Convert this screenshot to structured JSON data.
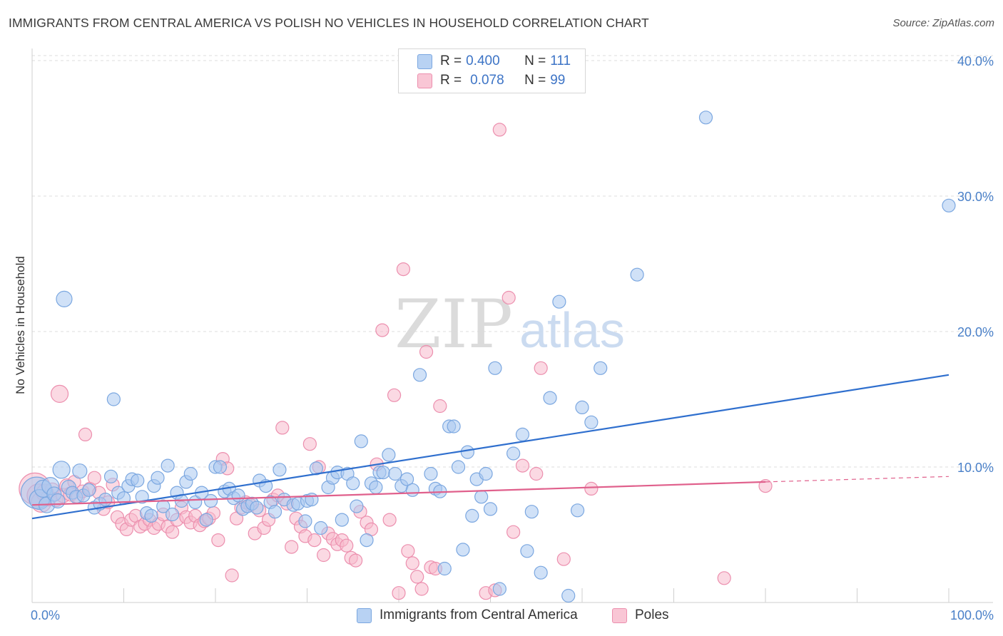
{
  "title": "IMMIGRANTS FROM CENTRAL AMERICA VS POLISH NO VEHICLES IN HOUSEHOLD CORRELATION CHART",
  "source": "Source: ZipAtlas.com",
  "watermark": {
    "zip": "ZIP",
    "atlas": "atlas"
  },
  "colors": {
    "blue_fill": "#a9c8f0",
    "blue_stroke": "#7ba7e0",
    "blue_line": "#2f6fce",
    "pink_fill": "#f7b9cc",
    "pink_stroke": "#ec8fae",
    "pink_line": "#e0608c",
    "grid": "#dcdcdc",
    "tick_text": "#4a80c8"
  },
  "legend": {
    "rows": [
      {
        "r_label": "R = ",
        "r_value": "0.400",
        "n_label": "N = ",
        "n_value": "111"
      },
      {
        "r_label": "R = ",
        "r_value": "0.078",
        "n_label": "N = ",
        "n_value": "99"
      }
    ]
  },
  "bottom_legend": [
    "Immigrants from Central America",
    "Poles"
  ],
  "chart_data": {
    "type": "scatter",
    "title": "IMMIGRANTS FROM CENTRAL AMERICA VS POLISH NO VEHICLES IN HOUSEHOLD CORRELATION CHART",
    "xlabel": "",
    "ylabel": "No Vehicles in Household",
    "xlim": [
      0,
      100
    ],
    "ylim": [
      0,
      40
    ],
    "x_tick_labels": [
      "0.0%",
      "100.0%"
    ],
    "y_ticks": [
      10,
      20,
      30,
      40
    ],
    "y_tick_labels": [
      "10.0%",
      "20.0%",
      "30.0%",
      "40.0%"
    ],
    "legend_placement": "top-center",
    "grid": true,
    "series": [
      {
        "name": "Immigrants from Central America",
        "R": 0.4,
        "N": 111,
        "trend": {
          "x": [
            0,
            100
          ],
          "y": [
            6.2,
            16.8
          ],
          "dashed_from": null
        },
        "points": [
          [
            0.5,
            8.1,
            22
          ],
          [
            0.8,
            7.6,
            14
          ],
          [
            1.2,
            8.4,
            12
          ],
          [
            1.6,
            7.2,
            11
          ],
          [
            2.0,
            8.6,
            12
          ],
          [
            2.4,
            8.0,
            10
          ],
          [
            2.8,
            7.5,
            10
          ],
          [
            3.2,
            9.8,
            12
          ],
          [
            3.5,
            22.4,
            11
          ],
          [
            4.0,
            8.5,
            10
          ],
          [
            4.4,
            8.1,
            9
          ],
          [
            4.8,
            7.8,
            9
          ],
          [
            5.2,
            9.7,
            10
          ],
          [
            5.6,
            7.9,
            9
          ],
          [
            6.2,
            8.3,
            9
          ],
          [
            6.8,
            7.0,
            9
          ],
          [
            7.4,
            7.3,
            9
          ],
          [
            8.0,
            7.6,
            9
          ],
          [
            8.6,
            9.3,
            9
          ],
          [
            8.9,
            15.0,
            9
          ],
          [
            9.4,
            8.1,
            9
          ],
          [
            10.0,
            7.7,
            9
          ],
          [
            10.5,
            8.6,
            9
          ],
          [
            10.9,
            9.1,
            9
          ],
          [
            11.5,
            9.0,
            9
          ],
          [
            12.0,
            7.8,
            9
          ],
          [
            12.5,
            6.6,
            9
          ],
          [
            13.0,
            6.4,
            9
          ],
          [
            13.3,
            8.6,
            9
          ],
          [
            13.7,
            9.2,
            9
          ],
          [
            14.3,
            7.1,
            9
          ],
          [
            14.8,
            10.1,
            9
          ],
          [
            15.3,
            6.5,
            9
          ],
          [
            15.8,
            8.1,
            9
          ],
          [
            16.3,
            7.5,
            9
          ],
          [
            16.8,
            8.9,
            9
          ],
          [
            17.3,
            9.5,
            9
          ],
          [
            17.8,
            7.4,
            9
          ],
          [
            18.5,
            8.1,
            9
          ],
          [
            19.0,
            6.1,
            9
          ],
          [
            19.5,
            7.5,
            9
          ],
          [
            20.0,
            10.0,
            9
          ],
          [
            20.5,
            10.0,
            9
          ],
          [
            21.0,
            8.2,
            9
          ],
          [
            21.5,
            8.4,
            9
          ],
          [
            22.0,
            7.7,
            9
          ],
          [
            22.5,
            7.9,
            9
          ],
          [
            23.0,
            6.9,
            9
          ],
          [
            23.5,
            7.1,
            9
          ],
          [
            24.0,
            7.3,
            9
          ],
          [
            24.5,
            7.0,
            9
          ],
          [
            24.8,
            9.0,
            9
          ],
          [
            25.5,
            8.6,
            9
          ],
          [
            26.0,
            7.4,
            9
          ],
          [
            26.5,
            6.7,
            9
          ],
          [
            27.0,
            9.8,
            9
          ],
          [
            27.5,
            7.6,
            9
          ],
          [
            28.5,
            7.2,
            9
          ],
          [
            29.0,
            7.3,
            9
          ],
          [
            29.8,
            6.0,
            9
          ],
          [
            30.0,
            7.5,
            9
          ],
          [
            30.5,
            7.6,
            9
          ],
          [
            31.0,
            9.9,
            9
          ],
          [
            31.5,
            5.5,
            9
          ],
          [
            32.3,
            8.5,
            9
          ],
          [
            32.8,
            9.2,
            9
          ],
          [
            33.3,
            9.6,
            9
          ],
          [
            33.8,
            6.1,
            9
          ],
          [
            34.4,
            9.5,
            9
          ],
          [
            35.0,
            8.8,
            9
          ],
          [
            35.4,
            7.1,
            9
          ],
          [
            35.9,
            11.9,
            9
          ],
          [
            36.5,
            4.6,
            9
          ],
          [
            37.0,
            8.8,
            9
          ],
          [
            37.5,
            8.5,
            9
          ],
          [
            37.9,
            9.6,
            9
          ],
          [
            38.3,
            9.6,
            9
          ],
          [
            38.9,
            10.9,
            9
          ],
          [
            39.6,
            9.5,
            9
          ],
          [
            40.3,
            8.6,
            9
          ],
          [
            40.9,
            9.1,
            9
          ],
          [
            41.5,
            8.3,
            9
          ],
          [
            42.3,
            16.8,
            9
          ],
          [
            43.5,
            9.5,
            9
          ],
          [
            44.0,
            8.4,
            9
          ],
          [
            44.5,
            8.2,
            9
          ],
          [
            45.0,
            2.5,
            9
          ],
          [
            45.5,
            13.0,
            9
          ],
          [
            46.0,
            13.0,
            9
          ],
          [
            46.5,
            10.0,
            9
          ],
          [
            47.0,
            3.9,
            9
          ],
          [
            47.5,
            11.1,
            9
          ],
          [
            48.0,
            6.4,
            9
          ],
          [
            48.5,
            9.1,
            9
          ],
          [
            49.0,
            7.8,
            9
          ],
          [
            49.5,
            9.5,
            9
          ],
          [
            50.0,
            6.9,
            9
          ],
          [
            50.5,
            17.3,
            9
          ],
          [
            51.0,
            1.0,
            9
          ],
          [
            52.5,
            11.0,
            9
          ],
          [
            53.5,
            12.4,
            9
          ],
          [
            54.0,
            3.8,
            9
          ],
          [
            54.5,
            6.7,
            9
          ],
          [
            55.5,
            2.2,
            9
          ],
          [
            56.5,
            15.1,
            9
          ],
          [
            57.5,
            22.2,
            9
          ],
          [
            58.5,
            0.5,
            9
          ],
          [
            59.5,
            6.8,
            9
          ],
          [
            60.0,
            14.4,
            9
          ],
          [
            61.0,
            13.3,
            9
          ],
          [
            62.0,
            17.3,
            9
          ],
          [
            66.0,
            24.2,
            9
          ],
          [
            73.5,
            35.8,
            9
          ],
          [
            100.0,
            29.3,
            9
          ]
        ]
      },
      {
        "name": "Poles",
        "R": 0.078,
        "N": 99,
        "trend": {
          "x": [
            0,
            80,
            100
          ],
          "y": [
            7.2,
            8.9,
            9.3
          ],
          "dashed_from": 80
        },
        "points": [
          [
            0.3,
            8.4,
            22
          ],
          [
            0.7,
            7.9,
            16
          ],
          [
            1.0,
            7.4,
            14
          ],
          [
            1.4,
            8.1,
            12
          ],
          [
            1.8,
            7.7,
            11
          ],
          [
            2.2,
            8.3,
            10
          ],
          [
            2.6,
            7.6,
            10
          ],
          [
            3.0,
            15.4,
            12
          ],
          [
            3.4,
            7.9,
            10
          ],
          [
            3.8,
            8.6,
            10
          ],
          [
            4.2,
            8.0,
            10
          ],
          [
            4.6,
            8.9,
            9
          ],
          [
            5.0,
            7.8,
            9
          ],
          [
            5.5,
            8.2,
            9
          ],
          [
            5.8,
            12.4,
            9
          ],
          [
            6.3,
            8.4,
            9
          ],
          [
            6.8,
            9.2,
            9
          ],
          [
            7.3,
            8.1,
            9
          ],
          [
            7.8,
            6.9,
            9
          ],
          [
            8.3,
            7.4,
            9
          ],
          [
            8.8,
            8.7,
            9
          ],
          [
            9.3,
            6.3,
            9
          ],
          [
            9.8,
            5.8,
            9
          ],
          [
            10.3,
            5.4,
            9
          ],
          [
            10.8,
            6.1,
            9
          ],
          [
            11.3,
            6.4,
            9
          ],
          [
            11.8,
            5.6,
            9
          ],
          [
            12.3,
            5.8,
            9
          ],
          [
            12.8,
            6.1,
            9
          ],
          [
            13.3,
            5.5,
            9
          ],
          [
            13.8,
            5.8,
            9
          ],
          [
            14.3,
            6.5,
            9
          ],
          [
            14.8,
            5.6,
            9
          ],
          [
            15.3,
            5.2,
            9
          ],
          [
            15.8,
            6.1,
            9
          ],
          [
            16.3,
            7.0,
            9
          ],
          [
            16.8,
            6.3,
            9
          ],
          [
            17.3,
            5.9,
            9
          ],
          [
            17.8,
            6.4,
            9
          ],
          [
            18.3,
            5.7,
            9
          ],
          [
            18.8,
            6.0,
            9
          ],
          [
            19.3,
            6.2,
            9
          ],
          [
            19.8,
            6.6,
            9
          ],
          [
            20.3,
            4.6,
            9
          ],
          [
            20.8,
            10.6,
            9
          ],
          [
            21.3,
            9.9,
            9
          ],
          [
            21.8,
            2.0,
            9
          ],
          [
            22.3,
            6.2,
            9
          ],
          [
            22.8,
            7.0,
            9
          ],
          [
            23.3,
            7.4,
            9
          ],
          [
            23.8,
            7.2,
            9
          ],
          [
            24.3,
            5.1,
            9
          ],
          [
            24.8,
            6.8,
            9
          ],
          [
            25.3,
            5.5,
            9
          ],
          [
            25.8,
            6.1,
            9
          ],
          [
            26.3,
            7.6,
            9
          ],
          [
            26.8,
            7.9,
            9
          ],
          [
            27.3,
            12.9,
            9
          ],
          [
            27.8,
            7.3,
            9
          ],
          [
            28.3,
            4.1,
            9
          ],
          [
            28.8,
            6.2,
            9
          ],
          [
            29.3,
            5.6,
            9
          ],
          [
            29.8,
            4.9,
            9
          ],
          [
            30.3,
            11.7,
            9
          ],
          [
            30.8,
            4.6,
            9
          ],
          [
            31.3,
            10.0,
            9
          ],
          [
            31.8,
            3.5,
            9
          ],
          [
            32.3,
            5.1,
            9
          ],
          [
            32.8,
            4.7,
            9
          ],
          [
            33.3,
            4.3,
            9
          ],
          [
            33.8,
            4.6,
            9
          ],
          [
            34.3,
            4.2,
            9
          ],
          [
            34.8,
            3.3,
            9
          ],
          [
            35.3,
            3.1,
            9
          ],
          [
            35.8,
            6.7,
            9
          ],
          [
            36.5,
            5.9,
            9
          ],
          [
            37.0,
            5.4,
            9
          ],
          [
            37.6,
            10.2,
            9
          ],
          [
            38.2,
            20.1,
            9
          ],
          [
            39.0,
            6.1,
            9
          ],
          [
            39.5,
            15.3,
            9
          ],
          [
            40.0,
            0.7,
            9
          ],
          [
            40.5,
            24.6,
            9
          ],
          [
            41.0,
            3.8,
            9
          ],
          [
            41.5,
            2.9,
            9
          ],
          [
            42.0,
            1.9,
            9
          ],
          [
            42.5,
            1.0,
            9
          ],
          [
            43.0,
            18.5,
            9
          ],
          [
            43.5,
            2.6,
            9
          ],
          [
            44.0,
            2.5,
            9
          ],
          [
            44.5,
            14.5,
            9
          ],
          [
            49.5,
            0.7,
            9
          ],
          [
            50.5,
            0.9,
            9
          ],
          [
            51.0,
            34.9,
            9
          ],
          [
            52.0,
            22.5,
            9
          ],
          [
            52.5,
            5.2,
            9
          ],
          [
            53.5,
            10.1,
            9
          ],
          [
            55.0,
            9.5,
            9
          ],
          [
            55.5,
            17.3,
            9
          ],
          [
            58.0,
            3.2,
            9
          ],
          [
            61.0,
            8.4,
            9
          ],
          [
            75.5,
            1.8,
            9
          ],
          [
            80.0,
            8.6,
            9
          ]
        ]
      }
    ]
  }
}
